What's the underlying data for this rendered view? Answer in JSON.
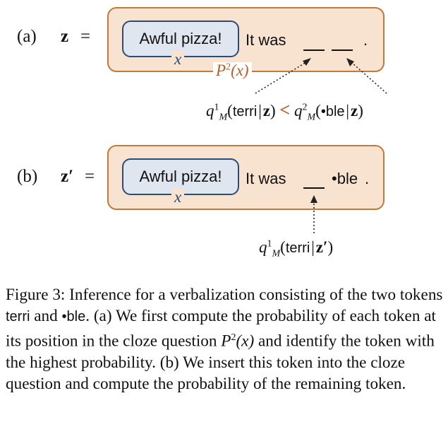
{
  "panel_a": {
    "label": "(a)",
    "z": "z",
    "eq": "=",
    "input_text": "Awful pizza!",
    "input_var": "x",
    "continuation": "It was",
    "period": ".",
    "pattern_label": "P",
    "pattern_sup": "2",
    "pattern_arg": "(x)",
    "compare": {
      "q": "q",
      "sup1": "1",
      "sub": "M",
      "token1": "terri",
      "lt": "<",
      "sup2": "2",
      "token2": "•ble"
    }
  },
  "panel_b": {
    "label": "(b)",
    "z": "z′",
    "eq": "=",
    "input_text": "Awful pizza!",
    "input_var": "x",
    "continuation": "It was",
    "filled_token": "•ble",
    "period": ".",
    "prob": {
      "q": "q",
      "sup": "1",
      "sub": "M",
      "token": "terri",
      "z": "z′"
    }
  },
  "caption": {
    "fig_label": "Figure 3:",
    "text1": "Inference for a verbalization consisting of the two tokens",
    "token1": "terri",
    "and": "and",
    "token2": "•ble",
    "text2": ". (a) We first compute the probability of each token at its position in the cloze question",
    "pattern": "P",
    "pattern_sup": "2",
    "pattern_arg": "(x)",
    "text3": "and identify the token with the highest probability. (b) We insert this token into the cloze question and compute the probability of the remaining token."
  }
}
